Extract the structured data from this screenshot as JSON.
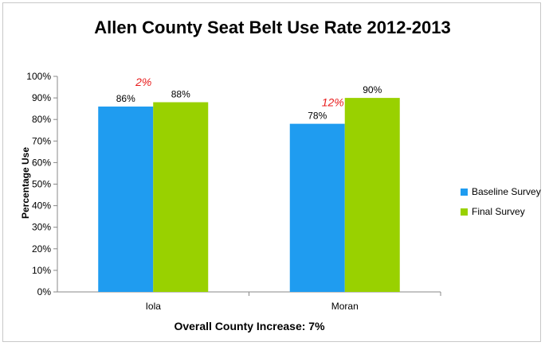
{
  "chart_data": {
    "type": "bar",
    "title": "Allen County Seat Belt Use Rate 2012-2013",
    "xlabel": "Overall County Increase: 7%",
    "ylabel": "Percentage Use",
    "categories": [
      "Iola",
      "Moran"
    ],
    "series": [
      {
        "name": "Baseline Survey",
        "values": [
          86,
          78
        ],
        "labels": [
          "86%",
          "78%"
        ],
        "color": "#1f9cf0"
      },
      {
        "name": "Final Survey",
        "values": [
          88,
          90
        ],
        "labels": [
          "88%",
          "90%"
        ],
        "color": "#99d100"
      }
    ],
    "annotations": [
      "2%",
      "12%"
    ],
    "ylim": [
      0,
      100
    ],
    "yticks": [
      0,
      10,
      20,
      30,
      40,
      50,
      60,
      70,
      80,
      90,
      100
    ],
    "ytick_labels": [
      "0%",
      "10%",
      "20%",
      "30%",
      "40%",
      "50%",
      "60%",
      "70%",
      "80%",
      "90%",
      "100%"
    ],
    "grid": false,
    "legend_position": "right"
  }
}
